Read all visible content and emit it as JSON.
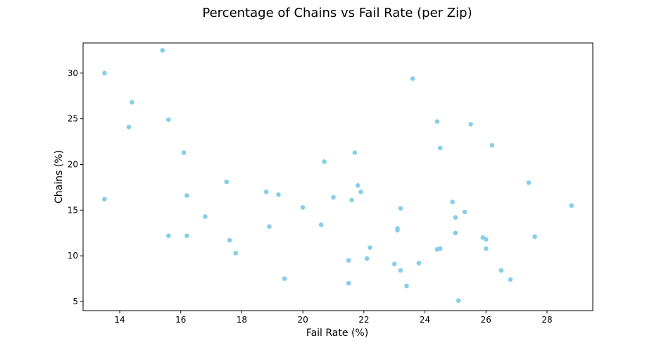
{
  "chart_data": {
    "type": "scatter",
    "title": "Percentage of Chains vs Fail Rate (per Zip)",
    "xlabel": "Fail Rate (%)",
    "ylabel": "Chains (%)",
    "xlim": [
      12.8,
      29.5
    ],
    "ylim": [
      4.0,
      33.3
    ],
    "xticks": [
      14,
      16,
      18,
      20,
      22,
      24,
      26,
      28
    ],
    "yticks": [
      5,
      10,
      15,
      20,
      25,
      30
    ],
    "grid": false,
    "marker_color": "#87CEEB",
    "points": [
      [
        13.5,
        30.0
      ],
      [
        15.4,
        32.5
      ],
      [
        14.4,
        26.8
      ],
      [
        14.3,
        24.1
      ],
      [
        15.6,
        24.9
      ],
      [
        13.5,
        16.2
      ],
      [
        16.1,
        21.3
      ],
      [
        16.2,
        16.6
      ],
      [
        15.6,
        12.2
      ],
      [
        16.2,
        12.2
      ],
      [
        16.8,
        14.3
      ],
      [
        17.5,
        18.1
      ],
      [
        17.6,
        11.7
      ],
      [
        17.8,
        10.3
      ],
      [
        18.8,
        17.0
      ],
      [
        18.9,
        13.2
      ],
      [
        19.2,
        16.7
      ],
      [
        19.4,
        7.5
      ],
      [
        20.0,
        15.3
      ],
      [
        20.6,
        13.4
      ],
      [
        20.7,
        20.3
      ],
      [
        21.0,
        16.4
      ],
      [
        21.5,
        9.5
      ],
      [
        21.5,
        7.0
      ],
      [
        21.6,
        16.1
      ],
      [
        21.7,
        21.3
      ],
      [
        21.8,
        17.7
      ],
      [
        21.9,
        17.0
      ],
      [
        22.1,
        9.7
      ],
      [
        22.2,
        10.9
      ],
      [
        23.0,
        9.1
      ],
      [
        23.1,
        13.0
      ],
      [
        23.1,
        12.8
      ],
      [
        23.2,
        8.4
      ],
      [
        23.2,
        15.2
      ],
      [
        23.4,
        6.7
      ],
      [
        23.6,
        29.4
      ],
      [
        23.8,
        9.2
      ],
      [
        24.4,
        24.7
      ],
      [
        24.4,
        10.7
      ],
      [
        24.5,
        21.8
      ],
      [
        24.5,
        10.8
      ],
      [
        24.9,
        15.9
      ],
      [
        25.0,
        12.5
      ],
      [
        25.0,
        14.2
      ],
      [
        25.1,
        5.1
      ],
      [
        25.3,
        14.8
      ],
      [
        25.5,
        24.4
      ],
      [
        25.9,
        12.0
      ],
      [
        26.0,
        11.8
      ],
      [
        26.0,
        10.8
      ],
      [
        26.2,
        22.1
      ],
      [
        26.5,
        8.4
      ],
      [
        26.8,
        7.4
      ],
      [
        27.4,
        18.0
      ],
      [
        27.6,
        12.1
      ],
      [
        28.8,
        15.5
      ]
    ]
  }
}
